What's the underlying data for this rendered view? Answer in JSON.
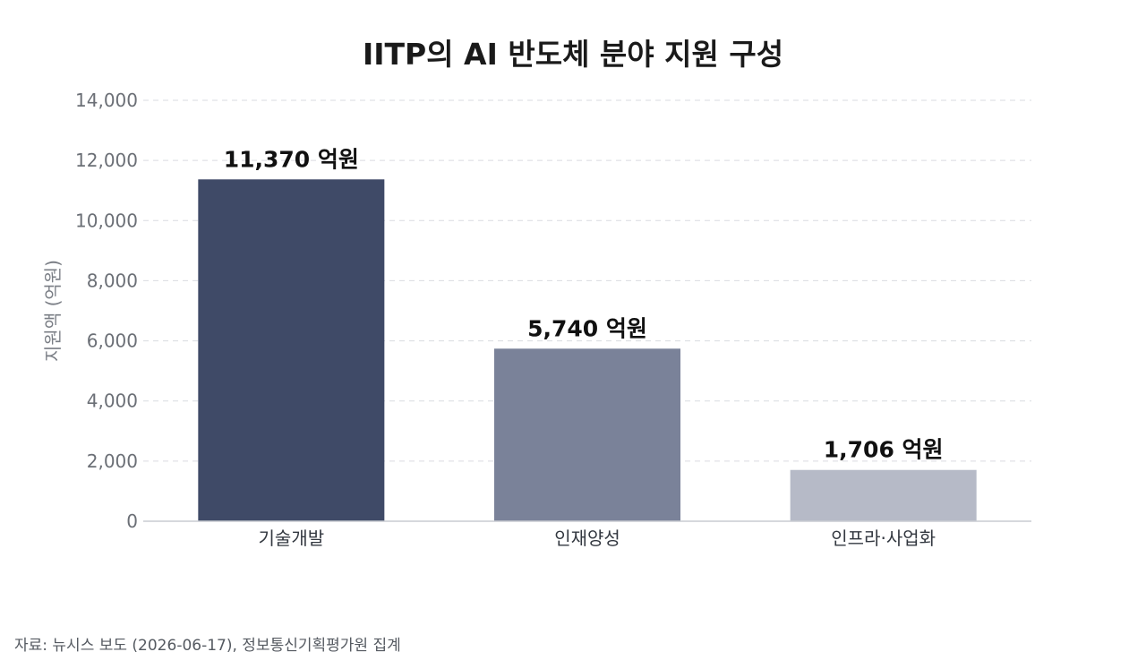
{
  "chart_data": {
    "type": "bar",
    "title": "IITP의 AI 반도체 분야 지원 구성",
    "ylabel": "지원액 (억원)",
    "xlabel": "",
    "categories": [
      "기술개발",
      "인재양성",
      "인프라·사업화"
    ],
    "values": [
      11370,
      5740,
      1706
    ],
    "value_labels": [
      "11,370 억원",
      "5,740 억원",
      "1,706 억원"
    ],
    "colors": [
      "#3f4a67",
      "#7a8299",
      "#b6bac7"
    ],
    "ylim": [
      0,
      14000
    ],
    "yticks": [
      0,
      2000,
      4000,
      6000,
      8000,
      10000,
      12000,
      14000
    ],
    "ytick_labels": [
      "0",
      "2,000",
      "4,000",
      "6,000",
      "8,000",
      "10,000",
      "12,000",
      "14,000"
    ],
    "grid": true,
    "grid_style": "dashed"
  },
  "source": "자료: 뉴시스 보도 (2026-06-17), 정보통신기획평가원 집계"
}
